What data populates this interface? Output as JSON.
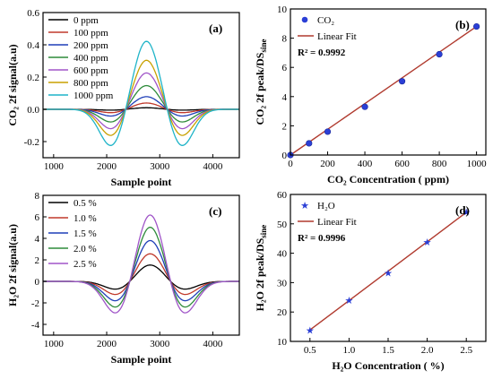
{
  "chart_data": [
    {
      "type": "line",
      "panel_label": "(a)",
      "xlabel": "Sample point",
      "ylabel": "CO₂ 2f signal(a.u)",
      "xlim": [
        800,
        4500
      ],
      "ylim": [
        -0.3,
        0.6
      ],
      "xticks": [
        1000,
        2000,
        3000,
        4000
      ],
      "yticks": [
        -0.2,
        0.0,
        0.2,
        0.4,
        0.6
      ],
      "ytick_labels": [
        "-0.2",
        "0.0",
        "0.2",
        "0.4",
        "0.6"
      ],
      "legend_position": "top-left",
      "curve_shape": {
        "center": 2750,
        "width": 250,
        "side_offset": 650,
        "side_width": 230,
        "side_ratio": 0.55
      },
      "series": [
        {
          "name": "0 ppm",
          "peak": 0.01,
          "color": "#000000"
        },
        {
          "name": "100 ppm",
          "peak": 0.04,
          "color": "#c0392b"
        },
        {
          "name": "200 ppm",
          "peak": 0.08,
          "color": "#1f3fb8"
        },
        {
          "name": "400 ppm",
          "peak": 0.15,
          "color": "#2e8b3a"
        },
        {
          "name": "600 ppm",
          "peak": 0.23,
          "color": "#a055c8"
        },
        {
          "name": "800 ppm",
          "peak": 0.31,
          "color": "#c8a100"
        },
        {
          "name": "1000 ppm",
          "peak": 0.43,
          "color": "#1fb4c8"
        }
      ]
    },
    {
      "type": "scatter",
      "panel_label": "(b)",
      "xlabel": "CO₂ Concentration ( ppm)",
      "ylabel": "CO₂ 2f peak/DS",
      "ylabel_sub": "sine",
      "xlim": [
        0,
        1050
      ],
      "ylim": [
        0,
        10
      ],
      "xticks": [
        0,
        200,
        400,
        600,
        800,
        1000
      ],
      "yticks": [
        0,
        2,
        4,
        6,
        8,
        10
      ],
      "legend_position": "top-left",
      "points_name": "CO₂",
      "fit_name": "Linear Fit",
      "r2_text": "R² = 0.9992",
      "point_color": "#2b3fd6",
      "fit_color": "#b03a2e",
      "x": [
        0,
        100,
        200,
        400,
        600,
        800,
        1000
      ],
      "y": [
        0.0,
        0.8,
        1.6,
        3.3,
        5.05,
        6.9,
        8.8
      ],
      "fit": {
        "slope": 0.0088,
        "intercept": 0.0
      }
    },
    {
      "type": "line",
      "panel_label": "(c)",
      "xlabel": "Sample point",
      "ylabel": "H₂O 2f signal(a.u)",
      "xlim": [
        800,
        4500
      ],
      "ylim": [
        -5,
        8
      ],
      "xticks": [
        1000,
        2000,
        3000,
        4000
      ],
      "yticks": [
        -4,
        -2,
        0,
        2,
        4,
        6,
        8
      ],
      "ytick_labels": [
        "-4",
        "-2",
        "0",
        "2",
        "4",
        "6",
        "8"
      ],
      "legend_position": "top-left",
      "curve_shape": {
        "center": 2820,
        "width": 260,
        "side_offset": 610,
        "side_width": 250,
        "side_ratio": 0.5
      },
      "series": [
        {
          "name": "0.5 %",
          "peak": 1.6,
          "color": "#000000"
        },
        {
          "name": "1.0 %",
          "peak": 2.7,
          "color": "#c0392b"
        },
        {
          "name": "1.5 %",
          "peak": 4.0,
          "color": "#1f3fb8"
        },
        {
          "name": "2.0 %",
          "peak": 5.3,
          "color": "#2e8b3a"
        },
        {
          "name": "2.5 %",
          "peak": 6.5,
          "color": "#a055c8"
        }
      ]
    },
    {
      "type": "scatter",
      "panel_label": "(d)",
      "xlabel": "H₂O Concentration ( %)",
      "ylabel": "H₂O 2f peak/DS",
      "ylabel_sub": "sine",
      "xlim": [
        0.25,
        2.75
      ],
      "ylim": [
        10,
        60
      ],
      "xticks": [
        0.5,
        1.0,
        1.5,
        2.0,
        2.5
      ],
      "xtick_labels": [
        "0.5",
        "1.0",
        "1.5",
        "2.0",
        "2.5"
      ],
      "yticks": [
        10,
        20,
        30,
        40,
        50,
        60
      ],
      "legend_position": "top-left",
      "points_name": "H₂O",
      "fit_name": "Linear Fit",
      "r2_text": "R² = 0.9996",
      "point_color": "#2b3fd6",
      "fit_color": "#b03a2e",
      "x": [
        0.5,
        1.0,
        1.5,
        2.0,
        2.5
      ],
      "y": [
        13.8,
        24.0,
        33.3,
        43.8,
        54.0
      ],
      "fit": {
        "slope": 20.0,
        "intercept": 3.9
      }
    }
  ]
}
